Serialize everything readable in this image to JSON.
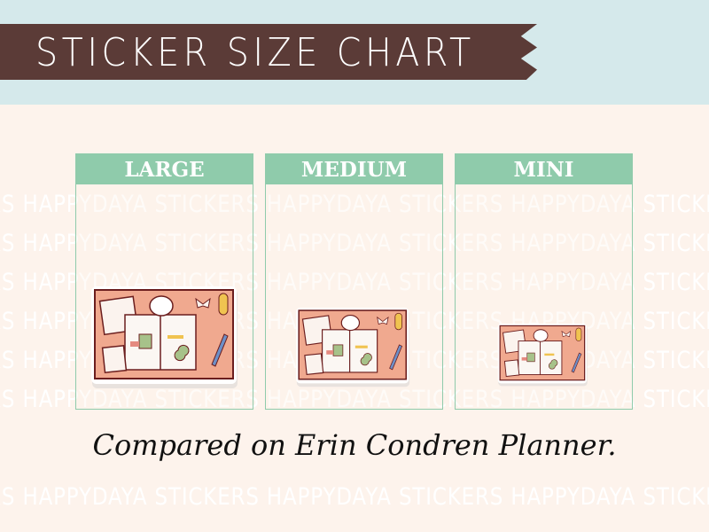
{
  "title": "STICKER SIZE CHART",
  "watermark": "HAPPYDAYA STICKERS",
  "sizes": [
    {
      "label": "LARGE"
    },
    {
      "label": "MEDIUM"
    },
    {
      "label": "MINI"
    }
  ],
  "caption": "Compared on Erin Condren Planner.",
  "colors": {
    "band": "#d5e9eb",
    "banner": "#5b3b37",
    "header": "#8fcbab",
    "background": "#fdf3ec",
    "sticker": "#f0a98f"
  }
}
